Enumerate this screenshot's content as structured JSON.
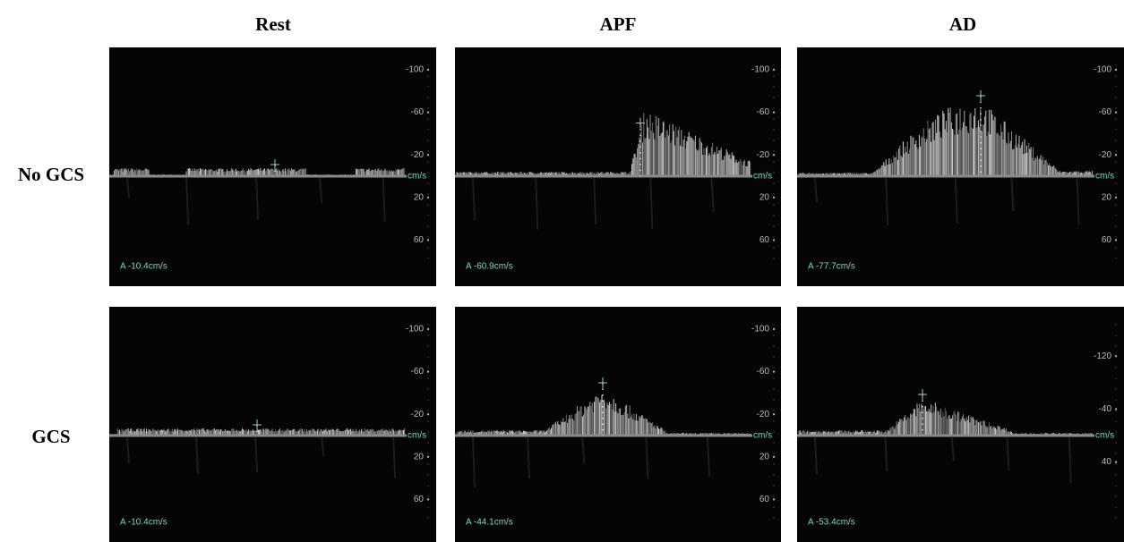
{
  "columns": [
    "Rest",
    "APF",
    "AD"
  ],
  "rows": [
    {
      "label": "No GCS",
      "panels": [
        {
          "scale": [
            -100,
            -60,
            -20,
            "cm/s",
            20,
            60
          ],
          "reading": "A  -10.4cm/s"
        },
        {
          "scale": [
            -100,
            -60,
            -20,
            "cm/s",
            20,
            60
          ],
          "reading": "A  -60.9cm/s"
        },
        {
          "scale": [
            -100,
            -60,
            -20,
            "cm/s",
            20,
            60
          ],
          "reading": "A  -77.7cm/s"
        }
      ]
    },
    {
      "label": "GCS",
      "panels": [
        {
          "scale": [
            -100,
            -60,
            -20,
            "cm/s",
            20,
            60
          ],
          "reading": "A  -10.4cm/s"
        },
        {
          "scale": [
            -100,
            -60,
            -20,
            "cm/s",
            20,
            60
          ],
          "reading": "A  -44.1cm/s"
        },
        {
          "scale": [
            -120,
            -40,
            "cm/s",
            40
          ],
          "reading": "A  -53.4cm/s"
        }
      ]
    }
  ]
}
